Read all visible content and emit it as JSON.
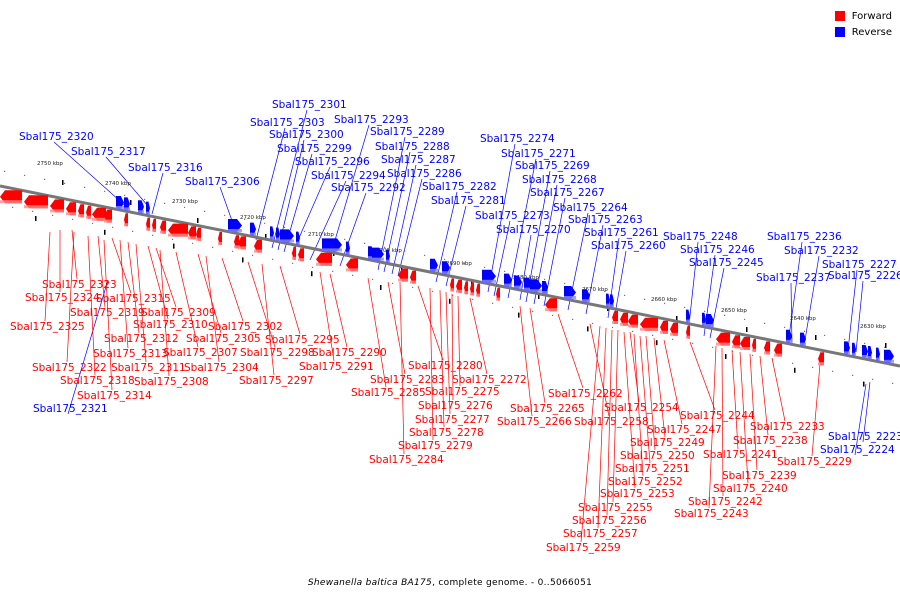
{
  "legend": {
    "items": [
      {
        "label": "Forward",
        "color": "#ff0000"
      },
      {
        "label": "Reverse",
        "color": "#0000ff"
      }
    ]
  },
  "caption": {
    "organism": "Shewanella baltica BA175",
    "text": ", complete genome. - 0..5066051"
  },
  "colors": {
    "forward": "#ff0000",
    "reverse": "#0000ff",
    "backbone": "#777777"
  },
  "scale": {
    "unit": "kbp",
    "ticks": [
      2750,
      2740,
      2730,
      2720,
      2710,
      2700,
      2690,
      2680,
      2670,
      2660,
      2650,
      2640,
      2630
    ]
  },
  "reverse_genes": [
    "Sbal175_2320",
    "Sbal175_2317",
    "Sbal175_2316",
    "Sbal175_2306",
    "Sbal175_2303",
    "Sbal175_2301",
    "Sbal175_2300",
    "Sbal175_2299",
    "Sbal175_2296",
    "Sbal175_2294",
    "Sbal175_2293",
    "Sbal175_2292",
    "Sbal175_2289",
    "Sbal175_2288",
    "Sbal175_2287",
    "Sbal175_2286",
    "Sbal175_2282",
    "Sbal175_2281",
    "Sbal175_2274",
    "Sbal175_2273",
    "Sbal175_2271",
    "Sbal175_2270",
    "Sbal175_2269",
    "Sbal175_2268",
    "Sbal175_2267",
    "Sbal175_2264",
    "Sbal175_2263",
    "Sbal175_2261",
    "Sbal175_2260",
    "Sbal175_2248",
    "Sbal175_2246",
    "Sbal175_2245",
    "Sbal175_2237",
    "Sbal175_2236",
    "Sbal175_2232",
    "Sbal175_2227",
    "Sbal175_2226",
    "Sbal175_2224",
    "Sbal175_2223",
    "Sbal175_2321"
  ],
  "forward_genes": [
    "Sbal175_2325",
    "Sbal175_2324",
    "Sbal175_2323",
    "Sbal175_2322",
    "Sbal175_2319",
    "Sbal175_2318",
    "Sbal175_2315",
    "Sbal175_2314",
    "Sbal175_2313",
    "Sbal175_2312",
    "Sbal175_2311",
    "Sbal175_2310",
    "Sbal175_2309",
    "Sbal175_2308",
    "Sbal175_2307",
    "Sbal175_2305",
    "Sbal175_2304",
    "Sbal175_2302",
    "Sbal175_2298",
    "Sbal175_2297",
    "Sbal175_2295",
    "Sbal175_2291",
    "Sbal175_2290",
    "Sbal175_2285",
    "Sbal175_2284",
    "Sbal175_2283",
    "Sbal175_2280",
    "Sbal175_2279",
    "Sbal175_2278",
    "Sbal175_2277",
    "Sbal175_2276",
    "Sbal175_2275",
    "Sbal175_2272",
    "Sbal175_2266",
    "Sbal175_2265",
    "Sbal175_2262",
    "Sbal175_2259",
    "Sbal175_2258",
    "Sbal175_2257",
    "Sbal175_2256",
    "Sbal175_2255",
    "Sbal175_2254",
    "Sbal175_2253",
    "Sbal175_2252",
    "Sbal175_2251",
    "Sbal175_2250",
    "Sbal175_2249",
    "Sbal175_2247",
    "Sbal175_2244",
    "Sbal175_2243",
    "Sbal175_2242",
    "Sbal175_2241",
    "Sbal175_2240",
    "Sbal175_2239",
    "Sbal175_2238",
    "Sbal175_2233",
    "Sbal175_2229"
  ]
}
